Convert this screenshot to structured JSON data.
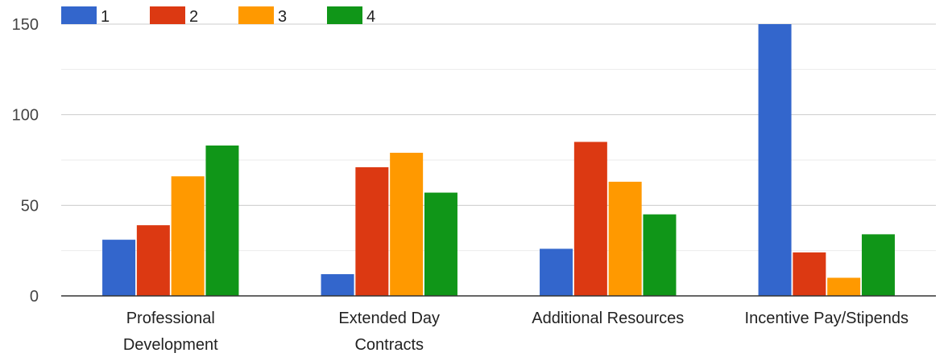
{
  "chart_data": {
    "type": "bar",
    "categories": [
      [
        "Professional",
        "Development"
      ],
      [
        "Extended Day",
        "Contracts"
      ],
      [
        "Additional Resources"
      ],
      [
        "Incentive Pay/Stipends"
      ]
    ],
    "series": [
      {
        "name": "1",
        "color": "#3366cc",
        "values": [
          31,
          12,
          26,
          150
        ]
      },
      {
        "name": "2",
        "color": "#dc3912",
        "values": [
          39,
          71,
          85,
          24
        ]
      },
      {
        "name": "3",
        "color": "#ff9900",
        "values": [
          66,
          79,
          63,
          10
        ]
      },
      {
        "name": "4",
        "color": "#109618",
        "values": [
          83,
          57,
          45,
          34
        ]
      }
    ],
    "yticks": [
      0,
      50,
      100,
      150
    ],
    "ylim": [
      0,
      150
    ],
    "grid": true,
    "legend": "top-left"
  }
}
